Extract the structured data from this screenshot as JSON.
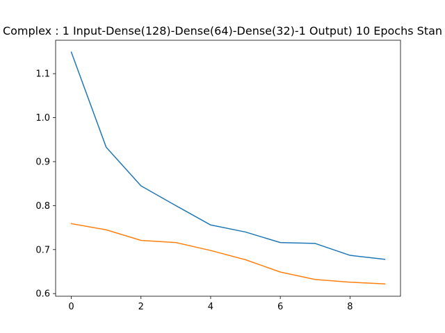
{
  "chart_data": {
    "type": "line",
    "title": "Complex : 1 Input-Dense(128)-Dense(64)-Dense(32)-1 Output)  10 Epochs Stan",
    "xlabel": "",
    "ylabel": "",
    "x": [
      0,
      1,
      2,
      3,
      4,
      5,
      6,
      7,
      8,
      9
    ],
    "xticks": [
      0,
      2,
      4,
      6,
      8
    ],
    "yticks": [
      0.6,
      0.7,
      0.8,
      0.9,
      1.0,
      1.1
    ],
    "ytick_labels": [
      "0.6",
      "0.7",
      "0.8",
      "0.9",
      "1.0",
      "1.1"
    ],
    "xlim": [
      -0.45,
      9.45
    ],
    "ylim": [
      0.594,
      1.176
    ],
    "grid": false,
    "series": [
      {
        "color": "#1f77b4",
        "values": [
          1.149,
          0.933,
          0.845,
          0.8,
          0.756,
          0.74,
          0.716,
          0.714,
          0.687,
          0.678
        ]
      },
      {
        "color": "#ff7f0e",
        "values": [
          0.759,
          0.745,
          0.721,
          0.716,
          0.698,
          0.677,
          0.649,
          0.632,
          0.626,
          0.622
        ]
      }
    ]
  }
}
